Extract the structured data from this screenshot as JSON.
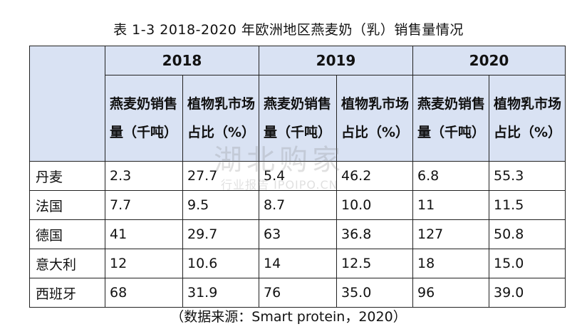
{
  "title": "表 1-3 2018-2020 年欧洲地区燕麦奶（乳）销售量情况",
  "table": {
    "years": [
      "2018",
      "2019",
      "2020"
    ],
    "subheaders": [
      "燕麦奶销售量（千吨）",
      "植物乳市场占比（%）"
    ],
    "rows": [
      {
        "country": "丹麦",
        "values": [
          "2.3",
          "27.7",
          "5.4",
          "46.2",
          "6.8",
          "55.3"
        ]
      },
      {
        "country": "法国",
        "values": [
          "7.7",
          "9.5",
          "8.7",
          "10.0",
          "11",
          "11.5"
        ]
      },
      {
        "country": "德国",
        "values": [
          "41",
          "29.7",
          "63",
          "36.8",
          "127",
          "50.8"
        ]
      },
      {
        "country": "意大利",
        "values": [
          "12",
          "10.6",
          "14",
          "12.5",
          "18",
          "15.0"
        ]
      },
      {
        "country": "西班牙",
        "values": [
          "68",
          "31.9",
          "76",
          "35.0",
          "96",
          "39.0"
        ]
      }
    ]
  },
  "source": "（数据来源：Smart protein，2020）",
  "watermark": {
    "main": "湖北购家",
    "sub": "行业报告 IPOIPO.CN"
  }
}
